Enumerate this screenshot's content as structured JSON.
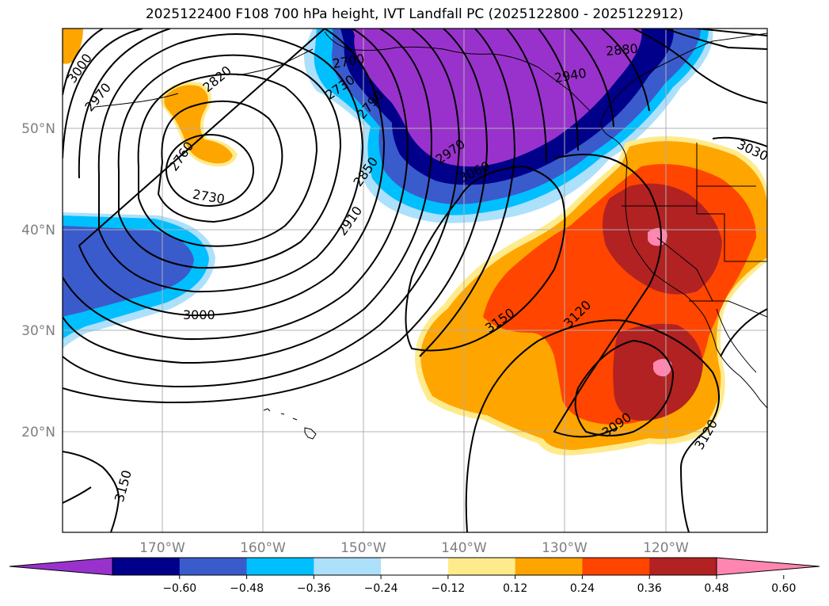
{
  "title": "2025122400 F108 700 hPa height, IVT Landfall PC (2025122800 - 2025122912)",
  "latitude_labels": [
    "50°N",
    "40°N",
    "30°N",
    "20°N"
  ],
  "longitude_labels": [
    "170°W",
    "160°W",
    "150°W",
    "140°W",
    "130°W",
    "120°W"
  ],
  "contour_labels": [
    "3000",
    "2970",
    "2820",
    "2760",
    "2730",
    "2700",
    "2730",
    "2790",
    "2850",
    "2910",
    "2970",
    "3060",
    "2880",
    "2940",
    "3030",
    "3150",
    "3120",
    "3090",
    "3120",
    "3000",
    "3150"
  ],
  "colorbar": {
    "tick_labels": [
      "−0.60",
      "−0.48",
      "−0.36",
      "−0.24",
      "−0.12",
      "0.12",
      "0.24",
      "0.36",
      "0.48",
      "0.60"
    ],
    "colors": [
      "#9932CC",
      "#00008B",
      "#3A5BCC",
      "#00BFFF",
      "#ADE0FA",
      "#FFFFFF",
      "#FFEB8C",
      "#FFA500",
      "#FF4500",
      "#B22222",
      "#FF86B0"
    ]
  },
  "colors": {
    "grid": "#b0b0b0",
    "coast": "#000000",
    "contour": "#000000"
  }
}
